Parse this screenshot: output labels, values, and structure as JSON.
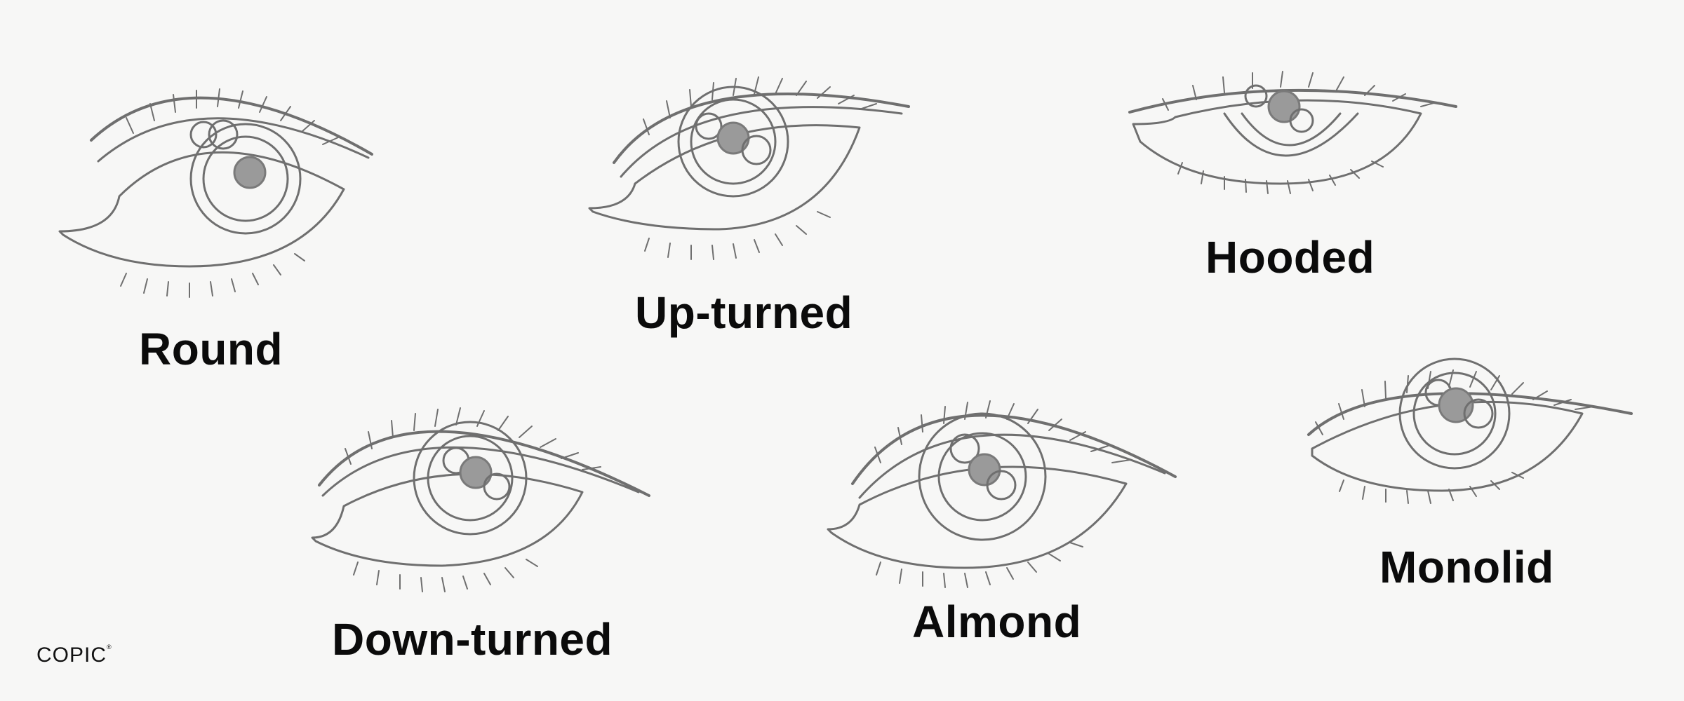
{
  "labels": {
    "round": "Round",
    "upturned": "Up-turned",
    "hooded": "Hooded",
    "downturned": "Down-turned",
    "almond": "Almond",
    "monolid": "Monolid"
  },
  "logo": "COPIC",
  "colors": {
    "background": "#f7f7f6",
    "pencil": "#6f6f6f",
    "text": "#0b0b0b"
  }
}
